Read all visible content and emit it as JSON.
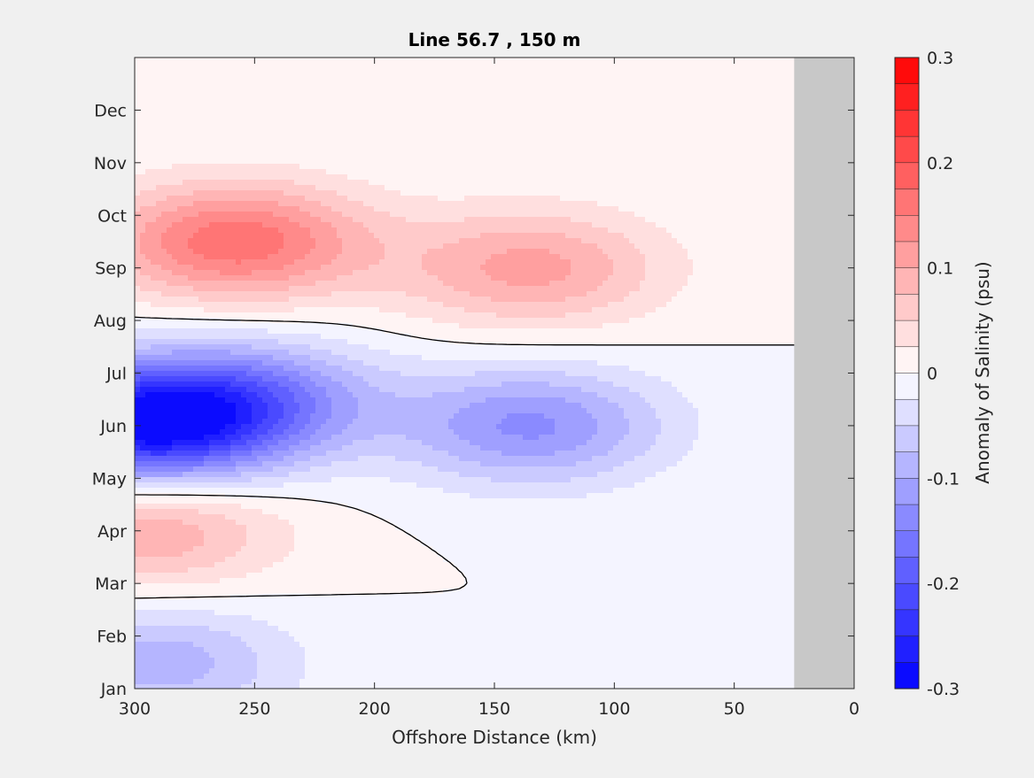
{
  "chart_data": {
    "type": "contour",
    "title": "Line 56.7 , 150 m",
    "xlabel": "Offshore Distance (km)",
    "ylabel": "",
    "xlim": [
      300,
      0
    ],
    "x_direction": "reversed",
    "x_ticks": [
      300,
      250,
      200,
      150,
      100,
      50,
      0
    ],
    "y_ticks": [
      "Jan",
      "Feb",
      "Mar",
      "Apr",
      "May",
      "Jun",
      "Jul",
      "Aug",
      "Sep",
      "Oct",
      "Nov",
      "Dec"
    ],
    "colorbar": {
      "label": "Anomaly of Salinity (psu)",
      "range": [
        -0.3,
        0.3
      ],
      "ticks": [
        "0.3",
        "0.2",
        "0.1",
        "0",
        "-0.1",
        "-0.2",
        "-0.3"
      ],
      "levels": 24,
      "colormap": "blue-white-red"
    },
    "no_data_region_km": [
      25,
      0
    ],
    "no_data_color": "#c8c8c8",
    "features": [
      {
        "name": "Positive anomaly maximum",
        "x_km": 258,
        "month": "Sep-Oct",
        "value": 0.17
      },
      {
        "name": "Positive anomaly",
        "x_km": 135,
        "month": "Sep",
        "value": 0.11
      },
      {
        "name": "Negative anomaly minimum",
        "x_km": 298,
        "month": "Jun",
        "value": -0.26
      },
      {
        "name": "Negative anomaly",
        "x_km": 255,
        "month": "Jun-Jul",
        "value": -0.14
      },
      {
        "name": "Negative anomaly",
        "x_km": 135,
        "month": "Jun",
        "value": -0.13
      },
      {
        "name": "Positive anomaly",
        "x_km": 295,
        "month": "Apr",
        "value": 0.1
      },
      {
        "name": "Negative anomaly",
        "x_km": 290,
        "month": "Jan-Feb",
        "value": -0.09
      }
    ]
  }
}
